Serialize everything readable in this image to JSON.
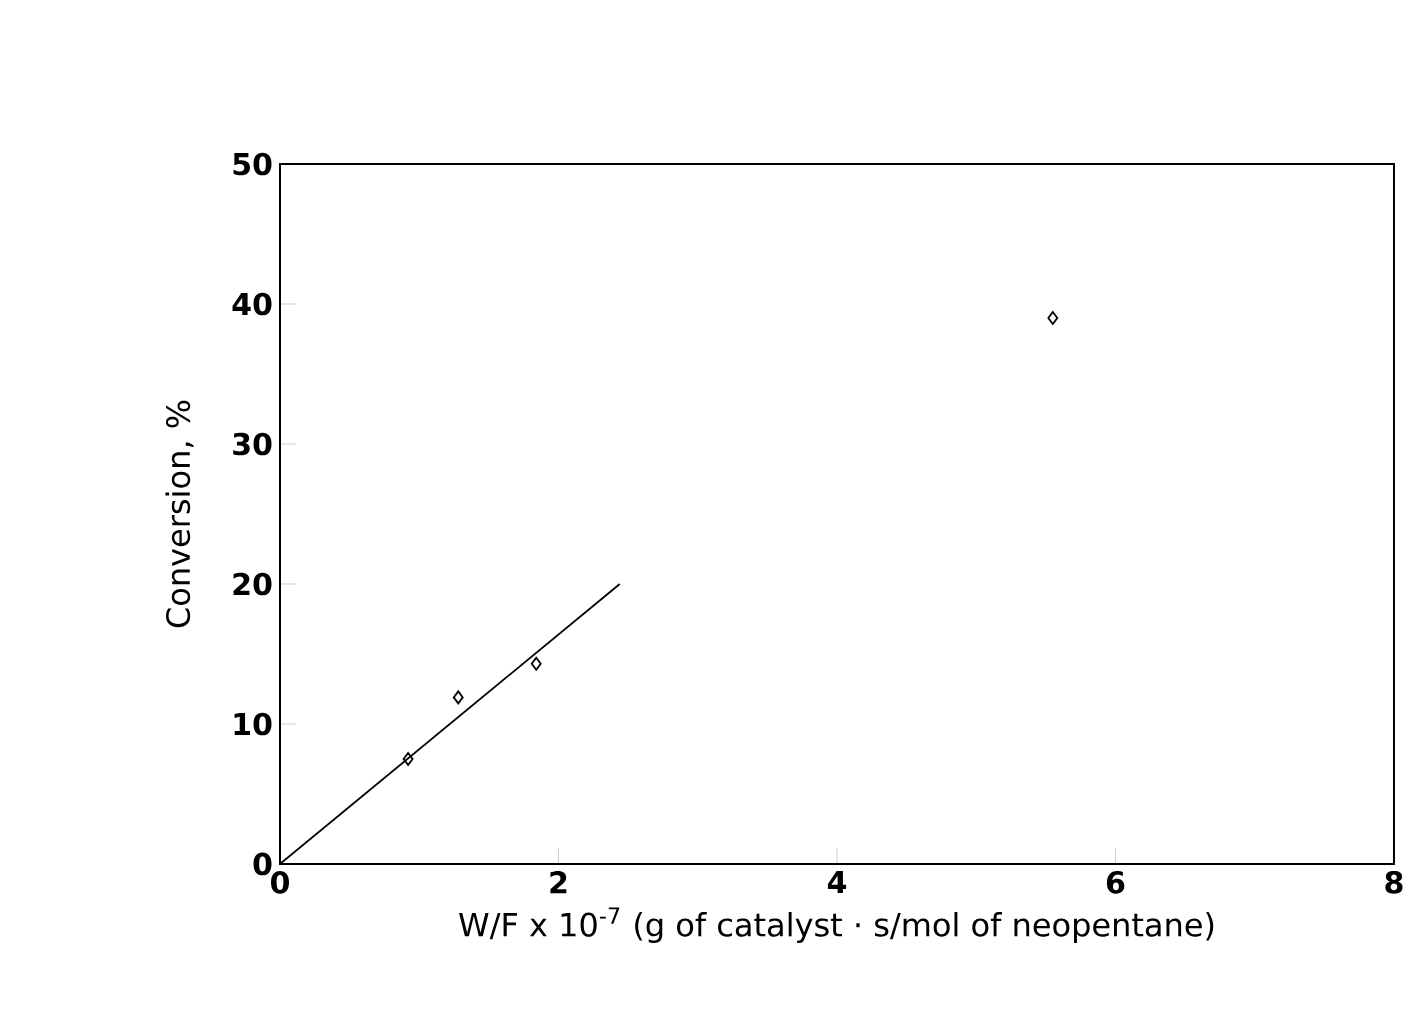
{
  "chart_data": {
    "type": "scatter",
    "xlabel": "W/F x 10$^{-7}$ (g of catalyst · s/mol of neopentane)",
    "ylabel": "Conversion, %",
    "xlim": [
      0,
      8
    ],
    "ylim": [
      0,
      50
    ],
    "xticks": [
      0,
      2,
      4,
      6,
      8
    ],
    "yticks": [
      0,
      10,
      20,
      30,
      40,
      50
    ],
    "grid": false,
    "marker": "diamond",
    "series": [
      {
        "color": "#000000",
        "x": [
          0.92,
          1.28,
          1.84,
          5.55
        ],
        "values": [
          7.5,
          11.9,
          14.3,
          39
        ]
      },
      {
        "type": "line",
        "color": "#000000",
        "x": [
          0,
          2.44
        ],
        "values": [
          0,
          20
        ],
        "marker": "none",
        "line_style": "solid"
      }
    ]
  }
}
